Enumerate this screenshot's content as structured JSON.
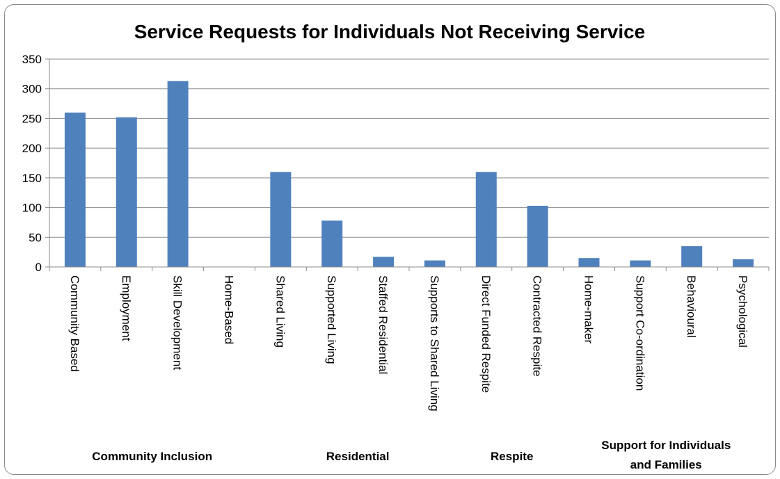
{
  "chart_data": {
    "type": "bar",
    "title": "Service Requests for Individuals  Not Receiving Service",
    "xlabel": "",
    "ylabel": "",
    "ylim": [
      0,
      350
    ],
    "yticks": [
      "0",
      "50",
      "100",
      "150",
      "200",
      "250",
      "300",
      "350"
    ],
    "grid": true,
    "legend": "none",
    "bar_color": "#4F81BD",
    "categories": [
      "Community Based",
      "Employment",
      "Skill Development",
      "Home-Based",
      "Shared Living",
      "Supported Living",
      "Staffed Residential",
      "Supports to Shared Living",
      "Direct Funded Respite",
      "Contracted Respite",
      "Home-maker",
      "Support Co-ordination",
      "Behavioural",
      "Psychological"
    ],
    "values": [
      260,
      252,
      313,
      0,
      160,
      78,
      17,
      11,
      160,
      103,
      15,
      11,
      35,
      13
    ],
    "groups": [
      {
        "label_lines": [
          "Community Inclusion"
        ],
        "categories": [
          "Community Based",
          "Employment",
          "Skill Development",
          "Home-Based"
        ]
      },
      {
        "label_lines": [
          "Residential"
        ],
        "categories": [
          "Shared Living",
          "Supported Living",
          "Staffed Residential",
          "Supports to Shared Living"
        ]
      },
      {
        "label_lines": [
          "Respite"
        ],
        "categories": [
          "Direct Funded Respite",
          "Contracted Respite"
        ]
      },
      {
        "label_lines": [
          "Support for Individuals",
          "and Families"
        ],
        "categories": [
          "Home-maker",
          "Support Co-ordination",
          "Behavioural",
          "Psychological"
        ]
      }
    ]
  }
}
